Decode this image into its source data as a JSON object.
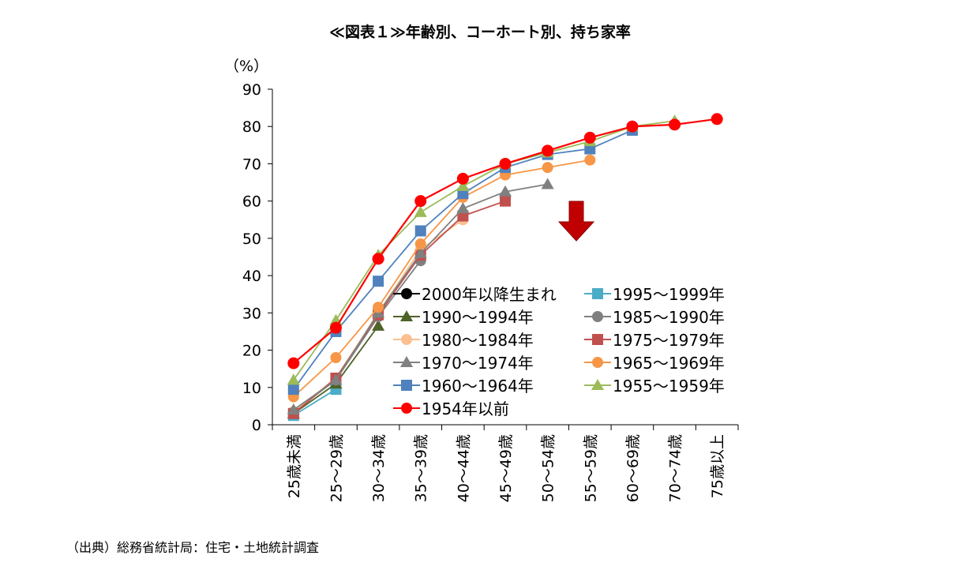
{
  "title": "≪図表１≫年齢別、コーホート別、持ち家率",
  "source": "（出典）総務省統計局：住宅・土地統計調査",
  "chart_data": {
    "type": "line",
    "y_unit_label": "（%）",
    "ylim": [
      0,
      90
    ],
    "yticks": [
      0,
      10,
      20,
      30,
      40,
      50,
      60,
      70,
      80,
      90
    ],
    "categories": [
      "25歳未満",
      "25～29歳",
      "30～34歳",
      "35～39歳",
      "40～44歳",
      "45～49歳",
      "50～54歳",
      "55～59歳",
      "60～69歳",
      "70～74歳",
      "75歳以上"
    ],
    "grid": false,
    "legend_position": "center-right",
    "series": [
      {
        "name": "2000年以降生まれ",
        "marker": "circle",
        "color": "#000000",
        "values": [
          null,
          null,
          null,
          null,
          null,
          null,
          null,
          null,
          null,
          null,
          null
        ]
      },
      {
        "name": "1995～1999年",
        "marker": "square",
        "color": "#4bacc6",
        "values": [
          2.5,
          9.5,
          null,
          null,
          null,
          null,
          null,
          null,
          null,
          null,
          null
        ]
      },
      {
        "name": "1990～1994年",
        "marker": "triangle",
        "color": "#4f6228",
        "values": [
          3,
          11,
          26.5,
          null,
          null,
          null,
          null,
          null,
          null,
          null,
          null
        ]
      },
      {
        "name": "1985～1990年",
        "marker": "circle",
        "color": "#7f7f7f",
        "values": [
          3.5,
          12,
          29,
          44,
          null,
          null,
          null,
          null,
          null,
          null,
          null
        ]
      },
      {
        "name": "1980～1984年",
        "marker": "circle",
        "color": "#fac090",
        "values": [
          3.5,
          12.5,
          30,
          47,
          55,
          null,
          null,
          null,
          null,
          null,
          null
        ]
      },
      {
        "name": "1975～1979年",
        "marker": "square",
        "color": "#c0504d",
        "values": [
          3,
          12.5,
          29.5,
          45.5,
          56,
          60,
          null,
          null,
          null,
          null,
          null
        ]
      },
      {
        "name": "1970～1974年",
        "marker": "triangle",
        "color": "#808080",
        "values": [
          4,
          12,
          30,
          46,
          58,
          62.5,
          64.5,
          null,
          null,
          null,
          null
        ]
      },
      {
        "name": "1965～1969年",
        "marker": "circle",
        "color": "#f79646",
        "values": [
          7.5,
          18,
          31.5,
          48.5,
          61,
          67,
          69,
          71,
          null,
          null,
          null
        ]
      },
      {
        "name": "1960～1964年",
        "marker": "square",
        "color": "#4f81bd",
        "values": [
          9.5,
          25,
          38.5,
          52,
          62,
          69,
          72.5,
          74,
          79,
          null,
          null
        ]
      },
      {
        "name": "1955～1959年",
        "marker": "triangle",
        "color": "#9bbb59",
        "values": [
          12,
          28,
          45.5,
          57,
          64,
          70,
          73,
          76,
          80,
          81.5,
          null
        ]
      },
      {
        "name": "1954年以前",
        "marker": "circle",
        "color": "#ff0000",
        "values": [
          16.5,
          26,
          44.5,
          60,
          66,
          70,
          73.5,
          77,
          80,
          80.5,
          82
        ]
      }
    ],
    "annotation": {
      "type": "down-arrow",
      "color": "#c00000"
    }
  }
}
